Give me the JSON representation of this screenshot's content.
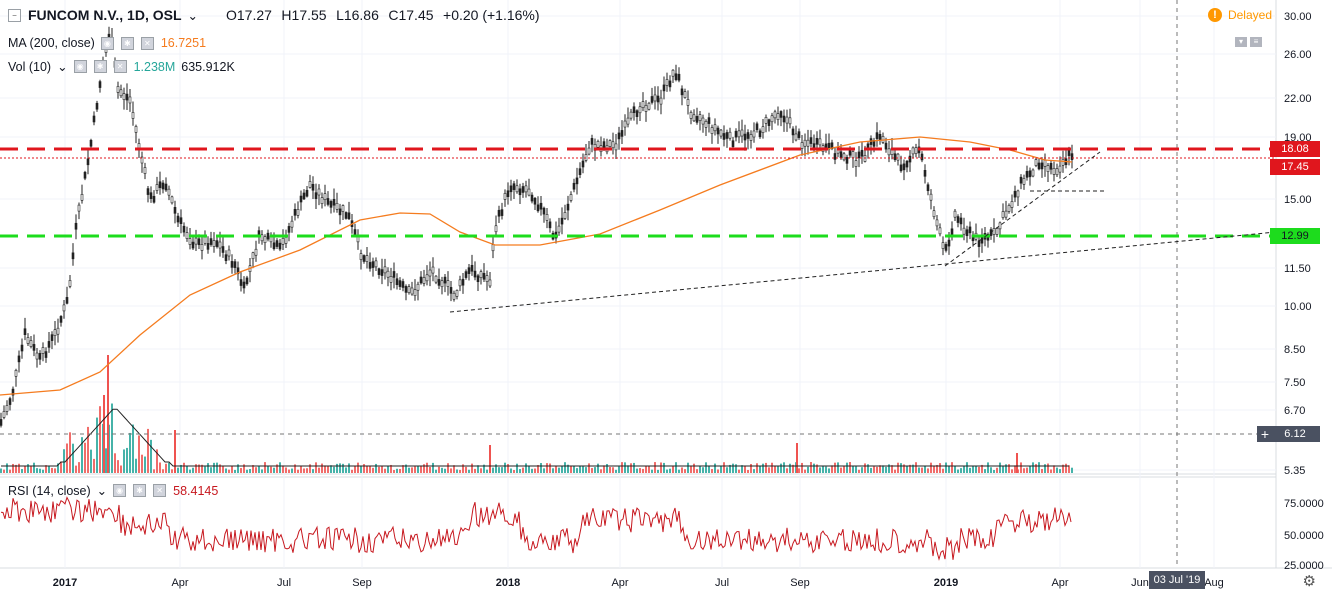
{
  "symbol": {
    "name": "FUNCOM N.V., 1D, OSL",
    "open": "O17.27",
    "high": "H17.55",
    "low": "L16.86",
    "close": "C17.45",
    "change": "+0.20 (+1.16%)"
  },
  "indicators": {
    "ma_label": "MA (200, close)",
    "ma_value": "16.7251",
    "vol_label": "Vol (10)",
    "vol_value1": "1.238M",
    "vol_value2": "635.912K",
    "rsi_label": "RSI (14, close)",
    "rsi_value": "58.4145"
  },
  "status": {
    "delayed": "Delayed"
  },
  "price_axis": {
    "labels": [
      "30.00",
      "26.00",
      "22.00",
      "19.00",
      "15.00",
      "11.50",
      "10.00",
      "8.50",
      "7.50",
      "6.70",
      "5.35"
    ],
    "tags": {
      "resistance": "18.08",
      "last": "17.45",
      "support": "12.99",
      "crosshair": "6.12"
    }
  },
  "rsi_axis": {
    "labels": [
      "75.0000",
      "50.0000",
      "25.0000"
    ]
  },
  "time_axis": {
    "labels": [
      "2017",
      "Apr",
      "Jul",
      "Sep",
      "2018",
      "Apr",
      "Jul",
      "Sep",
      "2019",
      "Apr",
      "Jun",
      "Aug"
    ],
    "crosshair_date": "03 Jul '19"
  },
  "colors": {
    "resistance": "#e0161d",
    "support": "#1ddc1d",
    "ma": "#f57c1f",
    "rsi": "#c7181f",
    "vol_up": "#26a69a",
    "vol_down": "#ef5350",
    "warning": "#ff9800"
  },
  "icons": [
    "collapse-icon",
    "chevron-down-icon",
    "eye-icon",
    "gear-icon",
    "close-icon",
    "info-icon",
    "crosshair-plus-icon",
    "settings-gear-icon"
  ]
}
